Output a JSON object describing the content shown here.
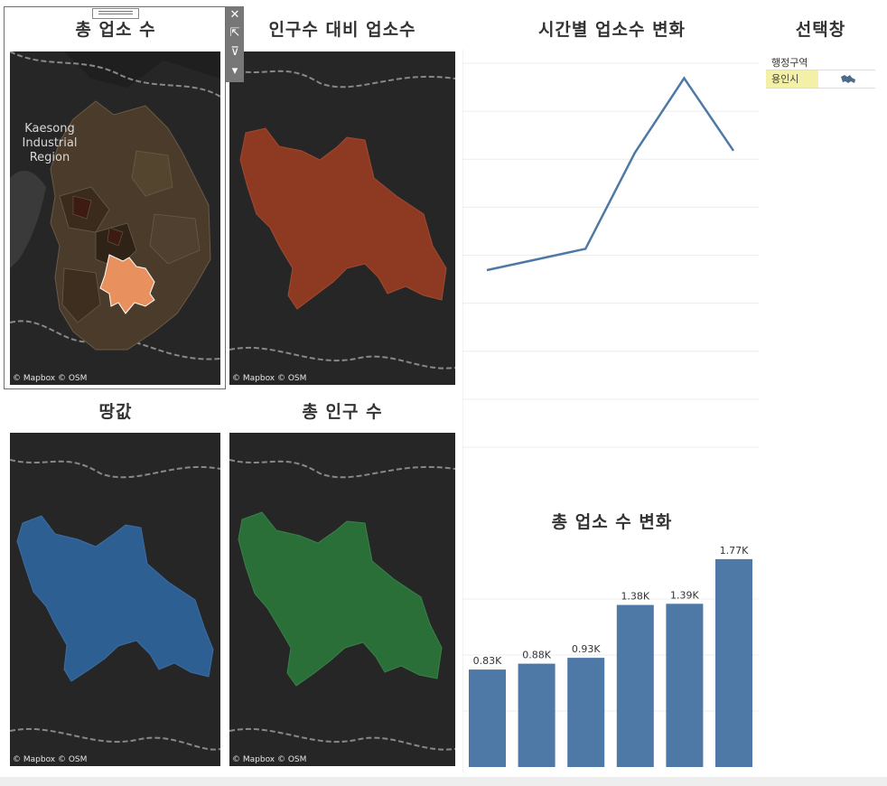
{
  "titles": {
    "total_businesses": "총 업소 수",
    "per_capita": "인구수 대비 업소수",
    "land_price": "땅값",
    "total_population": "총 인구 수",
    "businesses_over_time": "시간별 업소수 변화",
    "business_change": "총 업소 수 변화",
    "selector": "선택창"
  },
  "map": {
    "attribution": "© Mapbox © OSM",
    "region_label": "Kaesong\nIndustrial\nRegion"
  },
  "toolbar": {
    "close": "✕",
    "popout": "⇱",
    "filter": "⊽",
    "more": "▾"
  },
  "legend": {
    "header": "행정구역",
    "item": "용인시",
    "shape_icon": "region-shape-icon"
  },
  "colors": {
    "accent": "#4e79a7",
    "map_bg": "#262626",
    "highlight_orange": "#e8915e",
    "per_capita_fill": "#8e3a22",
    "land_price_fill": "#2e5f93",
    "population_fill": "#2a6e38",
    "legend_highlight": "#f5f0a8"
  },
  "chart_data": [
    {
      "type": "line",
      "title": "시간별 업소수 변화",
      "series": [
        {
          "values": [
            830,
            880,
            930,
            1380,
            1730,
            1390
          ]
        }
      ],
      "grid": true,
      "ylim": [
        0,
        1800
      ]
    },
    {
      "type": "bar",
      "title": "총 업소 수 변화",
      "values": [
        830,
        880,
        930,
        1380,
        1390,
        1770
      ],
      "labels": [
        "0.83K",
        "0.88K",
        "0.93K",
        "1.38K",
        "1.39K",
        "1.77K"
      ],
      "ylim": [
        0,
        1800
      ],
      "grid": true
    }
  ]
}
